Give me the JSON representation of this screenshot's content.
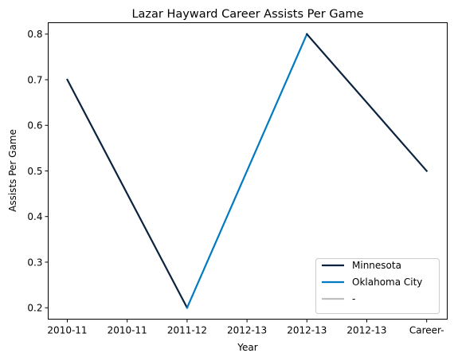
{
  "chart_data": {
    "type": "line",
    "title": "Lazar Hayward Career Assists Per Game",
    "xlabel": "Year",
    "ylabel": "Assists Per Game",
    "categories": [
      "2010-11",
      "2010-11",
      "2011-12",
      "2012-13",
      "2012-13",
      "2012-13",
      "Career-"
    ],
    "ylim": [
      0.175,
      0.825
    ],
    "yticks": [
      "0.2",
      "0.3",
      "0.4",
      "0.5",
      "0.6",
      "0.7",
      "0.8"
    ],
    "grid": false,
    "legend_position": "lower-right",
    "series": [
      {
        "name": "Minnesota",
        "color": "#0c2340",
        "points": [
          {
            "x": 0,
            "y": 0.7
          },
          {
            "x": 2,
            "y": 0.2
          }
        ]
      },
      {
        "name": "Oklahoma City",
        "color": "#007ac1",
        "points": [
          {
            "x": 2,
            "y": 0.2
          },
          {
            "x": 4,
            "y": 0.8
          }
        ]
      },
      {
        "name": "Minnesota",
        "color": "#0c2340",
        "points": [
          {
            "x": 4,
            "y": 0.8
          },
          {
            "x": 6,
            "y": 0.5
          }
        ]
      },
      {
        "name": "-",
        "color": "#c0c0c0",
        "points": []
      }
    ],
    "legend": [
      {
        "label": "Minnesota",
        "color": "#0c2340"
      },
      {
        "label": "Oklahoma City",
        "color": "#007ac1"
      },
      {
        "label": "-",
        "color": "#c0c0c0"
      }
    ]
  }
}
